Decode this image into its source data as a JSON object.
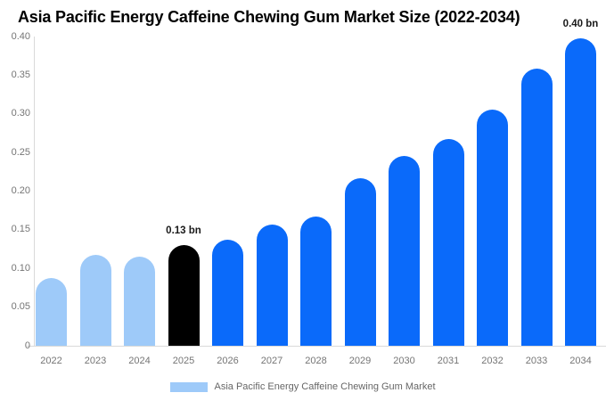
{
  "title": "Asia Pacific Energy Caffeine Chewing Gum Market Size (2022-2034)",
  "legend": {
    "label": "Asia Pacific Energy Caffeine Chewing Gum Market",
    "swatch_color": "#9ecaf9"
  },
  "colors": {
    "historical_bar": "#9ecaf9",
    "base_year_bar": "#000000",
    "forecast_bar": "#0a6afa",
    "axis_text": "#757575",
    "axis_line": "#d9d9d9",
    "annotation_text": "#1a1a1a",
    "title_text": "#000000",
    "background": "#ffffff"
  },
  "chart_data": {
    "type": "bar",
    "title": "Asia Pacific Energy Caffeine Chewing Gum Market Size (2022-2034)",
    "unit": "bn",
    "categories": [
      "2022",
      "2023",
      "2024",
      "2025",
      "2026",
      "2027",
      "2028",
      "2029",
      "2030",
      "2031",
      "2032",
      "2033",
      "2034"
    ],
    "values": [
      0.088,
      0.118,
      0.115,
      0.13,
      0.137,
      0.157,
      0.167,
      0.217,
      0.246,
      0.267,
      0.306,
      0.358,
      0.398
    ],
    "bar_colors": [
      "#9ecaf9",
      "#9ecaf9",
      "#9ecaf9",
      "#000000",
      "#0a6afa",
      "#0a6afa",
      "#0a6afa",
      "#0a6afa",
      "#0a6afa",
      "#0a6afa",
      "#0a6afa",
      "#0a6afa",
      "#0a6afa"
    ],
    "annotations": [
      {
        "category": "2025",
        "text": "0.13 bn"
      },
      {
        "category": "2034",
        "text": "0.40 bn"
      }
    ],
    "xlabel": "",
    "ylabel": "",
    "ylim": [
      0,
      0.4
    ],
    "yticks": [
      0,
      0.05,
      0.1,
      0.15,
      0.2,
      0.25,
      0.3,
      0.35,
      0.4
    ],
    "ytick_labels": [
      "0",
      "0.05",
      "0.10",
      "0.15",
      "0.20",
      "0.25",
      "0.30",
      "0.35",
      "0.40"
    ],
    "grid": false,
    "legend_position": "bottom"
  }
}
